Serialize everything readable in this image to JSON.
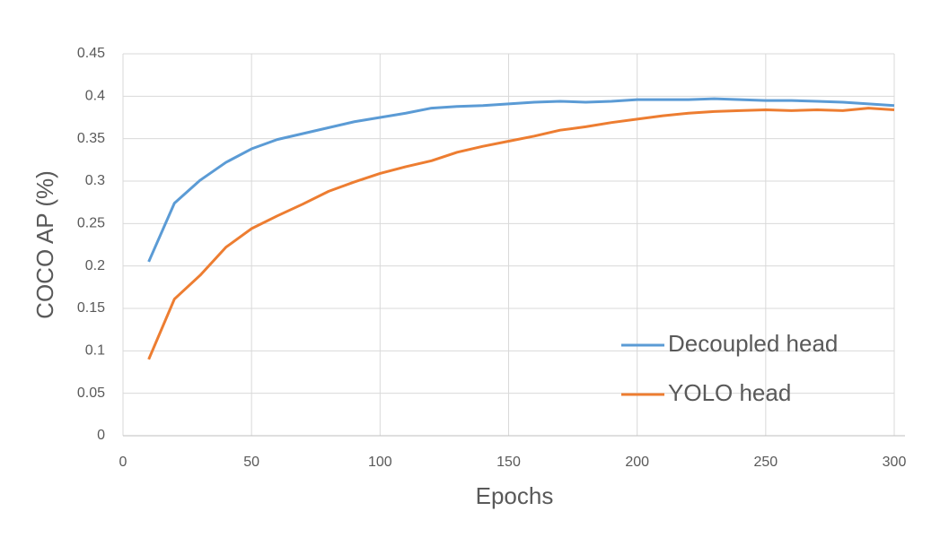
{
  "chart_data": {
    "type": "line",
    "xlabel": "Epochs",
    "ylabel": "COCO AP (%)",
    "x": [
      10,
      20,
      30,
      40,
      50,
      60,
      70,
      80,
      90,
      100,
      110,
      120,
      130,
      140,
      150,
      160,
      170,
      180,
      190,
      200,
      210,
      220,
      230,
      240,
      250,
      260,
      270,
      280,
      290,
      300
    ],
    "series": [
      {
        "name": "Decoupled head",
        "color": "#5b9bd5",
        "values": [
          0.205,
          0.274,
          0.301,
          0.322,
          0.338,
          0.349,
          0.356,
          0.363,
          0.37,
          0.375,
          0.38,
          0.386,
          0.388,
          0.389,
          0.391,
          0.393,
          0.394,
          0.393,
          0.394,
          0.396,
          0.396,
          0.396,
          0.397,
          0.396,
          0.395,
          0.395,
          0.394,
          0.393,
          0.391,
          0.389
        ]
      },
      {
        "name": "YOLO head",
        "color": "#ed7d31",
        "values": [
          0.09,
          0.161,
          0.189,
          0.222,
          0.244,
          0.259,
          0.273,
          0.288,
          0.299,
          0.309,
          0.317,
          0.324,
          0.334,
          0.341,
          0.347,
          0.353,
          0.36,
          0.364,
          0.369,
          0.373,
          0.377,
          0.38,
          0.382,
          0.383,
          0.384,
          0.383,
          0.384,
          0.383,
          0.386,
          0.384
        ]
      }
    ],
    "xlim": [
      0,
      300
    ],
    "xticks": [
      0,
      50,
      100,
      150,
      200,
      250,
      300
    ],
    "ylim": [
      0,
      0.45
    ],
    "yticks": [
      0,
      0.05,
      0.1,
      0.15,
      0.2,
      0.25,
      0.3,
      0.35,
      0.4,
      0.45
    ],
    "grid": true,
    "legend": "lower right"
  }
}
